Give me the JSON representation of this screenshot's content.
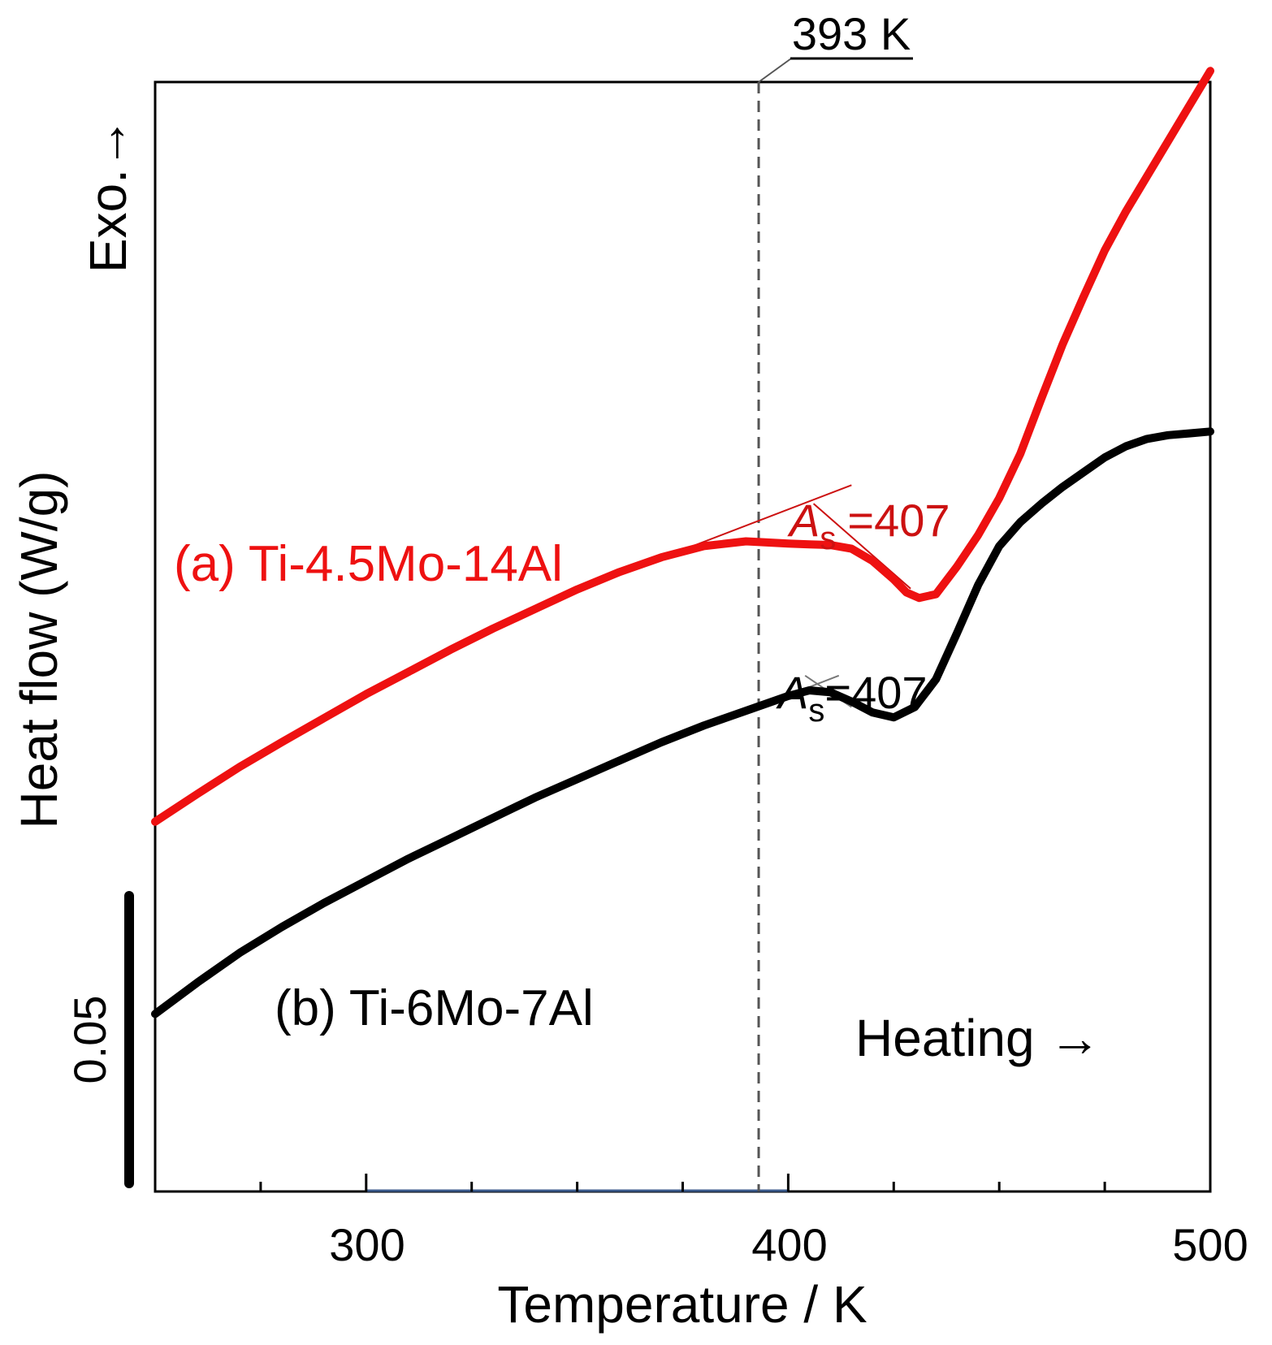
{
  "chart_data": {
    "type": "line",
    "title": "",
    "xlabel": "Temperature / K",
    "ylabel": "Heat flow (W/g)",
    "y_direction_label": "Exo.→",
    "xlim": [
      250,
      500
    ],
    "ylim": [
      0,
      0.3
    ],
    "x_ticks": [
      300,
      400,
      500
    ],
    "x_tick_labels": [
      "300",
      "400",
      "500"
    ],
    "y_scale_bar": {
      "label": "0.05",
      "value": 0.05
    },
    "colors": {
      "a": "#ee1111",
      "b": "#000000",
      "ref_line": "#555555"
    },
    "reference_line": {
      "x": 393,
      "label": "393 K"
    },
    "heating_label": "Heating →",
    "series": [
      {
        "name": "(a) Ti-4.5Mo-14Al",
        "color": "#ee1111",
        "x": [
          250,
          260,
          270,
          280,
          290,
          300,
          310,
          320,
          330,
          340,
          350,
          360,
          370,
          380,
          390,
          395,
          400,
          405,
          410,
          415,
          420,
          425,
          428,
          431,
          435,
          440,
          445,
          450,
          455,
          460,
          465,
          470,
          475,
          480,
          485,
          490,
          495,
          500
        ],
        "y": [
          0.1,
          0.1075,
          0.1148,
          0.1215,
          0.128,
          0.1345,
          0.1405,
          0.1465,
          0.1522,
          0.1575,
          0.1628,
          0.1675,
          0.1715,
          0.1745,
          0.1758,
          0.1755,
          0.1752,
          0.175,
          0.1748,
          0.1738,
          0.1705,
          0.1655,
          0.162,
          0.1605,
          0.1615,
          0.169,
          0.1775,
          0.1875,
          0.1995,
          0.2145,
          0.229,
          0.242,
          0.2545,
          0.265,
          0.2745,
          0.284,
          0.2935,
          0.303
        ]
      },
      {
        "name": "(b) Ti-6Mo-7Al",
        "color": "#000000",
        "x": [
          250,
          260,
          270,
          280,
          290,
          300,
          310,
          320,
          330,
          340,
          350,
          360,
          370,
          380,
          390,
          395,
          400,
          405,
          410,
          415,
          420,
          425,
          430,
          435,
          440,
          445,
          450,
          455,
          460,
          465,
          470,
          475,
          480,
          485,
          490,
          495,
          500
        ],
        "y": [
          0.048,
          0.0565,
          0.0645,
          0.0715,
          0.078,
          0.084,
          0.09,
          0.0955,
          0.101,
          0.1065,
          0.1115,
          0.1165,
          0.1215,
          0.126,
          0.13,
          0.132,
          0.134,
          0.1355,
          0.135,
          0.1325,
          0.1295,
          0.1282,
          0.131,
          0.1385,
          0.151,
          0.164,
          0.1745,
          0.181,
          0.186,
          0.1905,
          0.1945,
          0.1985,
          0.2015,
          0.2035,
          0.2045,
          0.205,
          0.2055
        ]
      }
    ],
    "annotations": [
      {
        "series": "a",
        "symbol": "A",
        "subscript": "s",
        "text": "=407",
        "x": 407
      },
      {
        "series": "b",
        "symbol": "A",
        "subscript": "s",
        "text": "=407",
        "x": 407
      }
    ]
  }
}
